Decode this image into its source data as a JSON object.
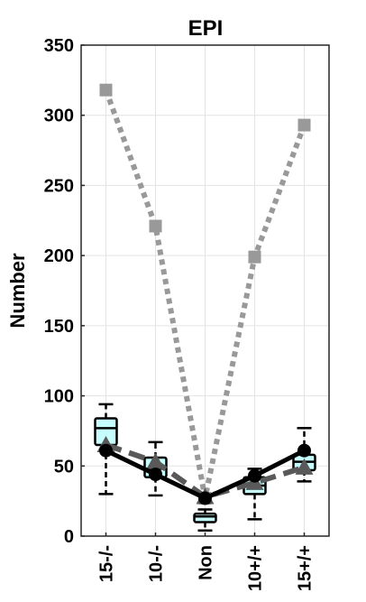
{
  "chart_data": {
    "type": "line",
    "title": "EPI",
    "xlabel": "",
    "ylabel": "Number",
    "ylim": [
      0,
      350
    ],
    "yticks": [
      0,
      50,
      100,
      150,
      200,
      250,
      300,
      350
    ],
    "categories": [
      "15-/-",
      "10-/-",
      "Non",
      "10+/+",
      "15+/+"
    ],
    "grid": true,
    "series": [
      {
        "style": "dotted-square",
        "color": "#999999",
        "values": [
          318,
          221,
          27,
          199,
          293
        ]
      },
      {
        "style": "dashed-triangle",
        "color": "#595959",
        "values": [
          65,
          53,
          28,
          38,
          49
        ]
      },
      {
        "style": "solid-circle",
        "color": "#000000",
        "values": [
          61,
          44,
          27,
          43,
          61
        ]
      }
    ],
    "boxplots": {
      "fill": "#c6fdfd",
      "boxes": [
        {
          "whisker_low": 30,
          "q1": 65,
          "median": 77,
          "q3": 84,
          "whisker_high": 94
        },
        {
          "whisker_low": 29,
          "q1": 42,
          "median": 48,
          "q3": 56,
          "whisker_high": 67
        },
        {
          "whisker_low": 4,
          "q1": 10,
          "median": 14,
          "q3": 16,
          "whisker_high": 19
        },
        {
          "whisker_low": 12,
          "q1": 30,
          "median": 36,
          "q3": 42,
          "whisker_high": 48
        },
        {
          "whisker_low": 39,
          "q1": 47,
          "median": 53,
          "q3": 58,
          "whisker_high": 77
        }
      ]
    }
  }
}
